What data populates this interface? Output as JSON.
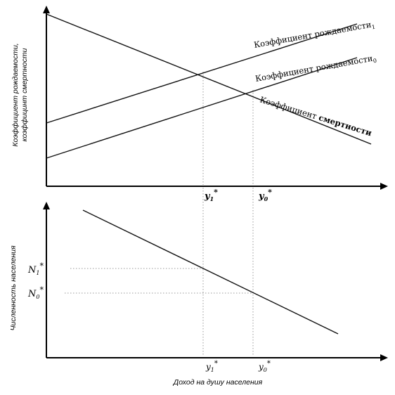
{
  "top_panel": {
    "y_axis_label_line1": "Коэффициент рождаемости,",
    "y_axis_label_line2": "коэффицинт смертности",
    "birth_rate_1_label": "Коэффициент рождаемости",
    "birth_rate_1_sub": "1",
    "birth_rate_0_label": "Коэффициент рождаемости",
    "birth_rate_0_sub": "0",
    "death_rate_label_part1": "Коэффициент ",
    "death_rate_label_part2": "смертности",
    "x_tick_y1": "y",
    "x_tick_y1_sub": "1",
    "x_tick_y0": "y",
    "x_tick_y0_sub": "0",
    "star": "*"
  },
  "bottom_panel": {
    "y_axis_label": "Численность населения",
    "y_tick_n1": "N",
    "y_tick_n1_sub": "1",
    "y_tick_n0": "N",
    "y_tick_n0_sub": "0",
    "x_tick_y1": "y",
    "x_tick_y1_sub": "1",
    "x_tick_y0": "y",
    "x_tick_y0_sub": "0",
    "star": "*",
    "x_axis_label": "Доход на душу населения"
  }
}
